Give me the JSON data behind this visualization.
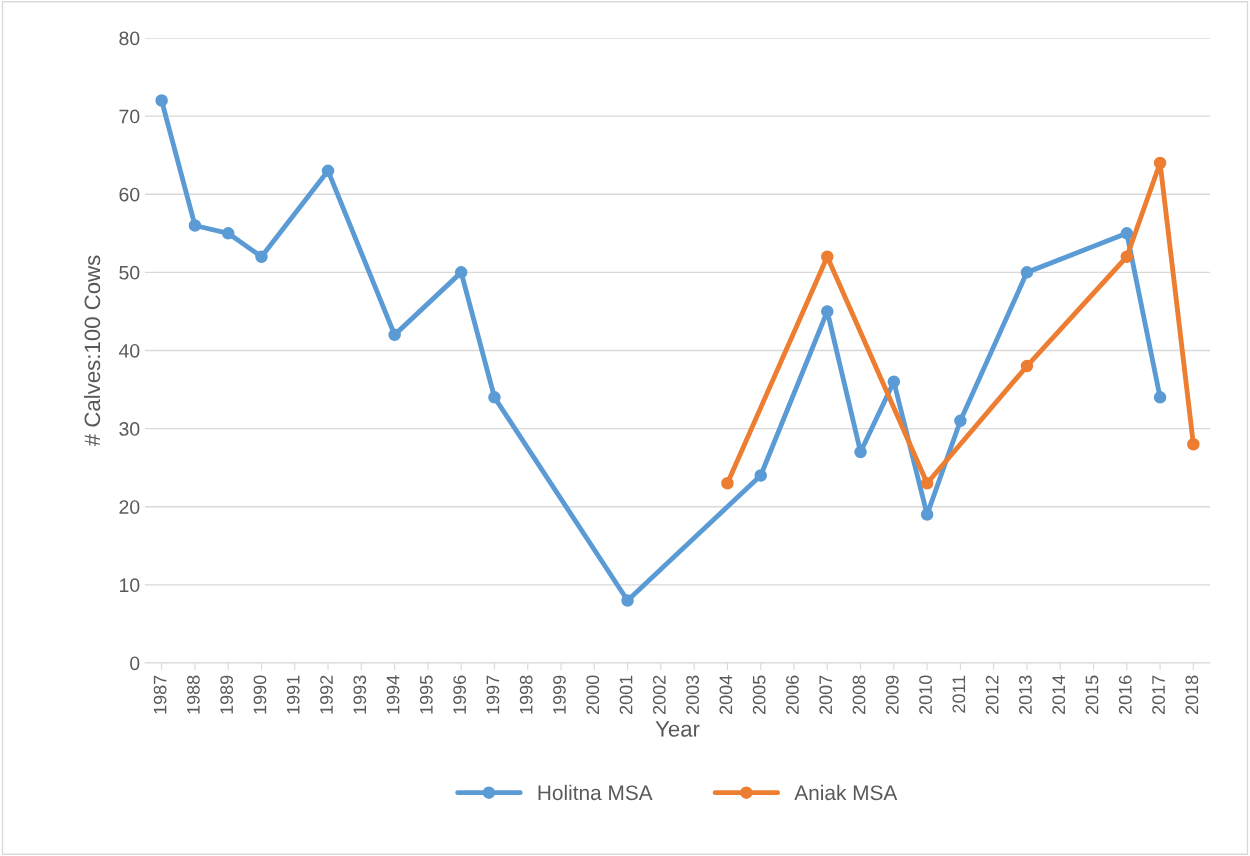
{
  "chart_data": {
    "type": "line",
    "xlabel": "Year",
    "ylabel": "# Calves:100 Cows",
    "categories": [
      "1987",
      "1988",
      "1989",
      "1990",
      "1991",
      "1992",
      "1993",
      "1994",
      "1995",
      "1996",
      "1997",
      "1998",
      "1999",
      "2000",
      "2001",
      "2002",
      "2003",
      "2004",
      "2005",
      "2006",
      "2007",
      "2008",
      "2009",
      "2010",
      "2011",
      "2012",
      "2013",
      "2014",
      "2015",
      "2016",
      "2017",
      "2018"
    ],
    "series": [
      {
        "name": "Holitna MSA",
        "color": "#5b9bd5",
        "values": [
          72,
          56,
          55,
          52,
          null,
          63,
          null,
          42,
          null,
          50,
          34,
          null,
          null,
          null,
          8,
          null,
          null,
          null,
          24,
          null,
          45,
          27,
          36,
          19,
          31,
          null,
          50,
          null,
          null,
          55,
          34,
          null
        ]
      },
      {
        "name": "Aniak MSA",
        "color": "#ed7d31",
        "values": [
          null,
          null,
          null,
          null,
          null,
          null,
          null,
          null,
          null,
          null,
          null,
          null,
          null,
          null,
          null,
          null,
          null,
          23,
          null,
          null,
          52,
          null,
          null,
          23,
          null,
          null,
          38,
          null,
          null,
          52,
          64,
          28
        ]
      }
    ],
    "ylim": [
      0,
      80
    ],
    "yticks": [
      0,
      10,
      20,
      30,
      40,
      50,
      60,
      70,
      80
    ],
    "grid": "y",
    "legend": "bottom",
    "marker": "circle",
    "line_style": "solid"
  }
}
